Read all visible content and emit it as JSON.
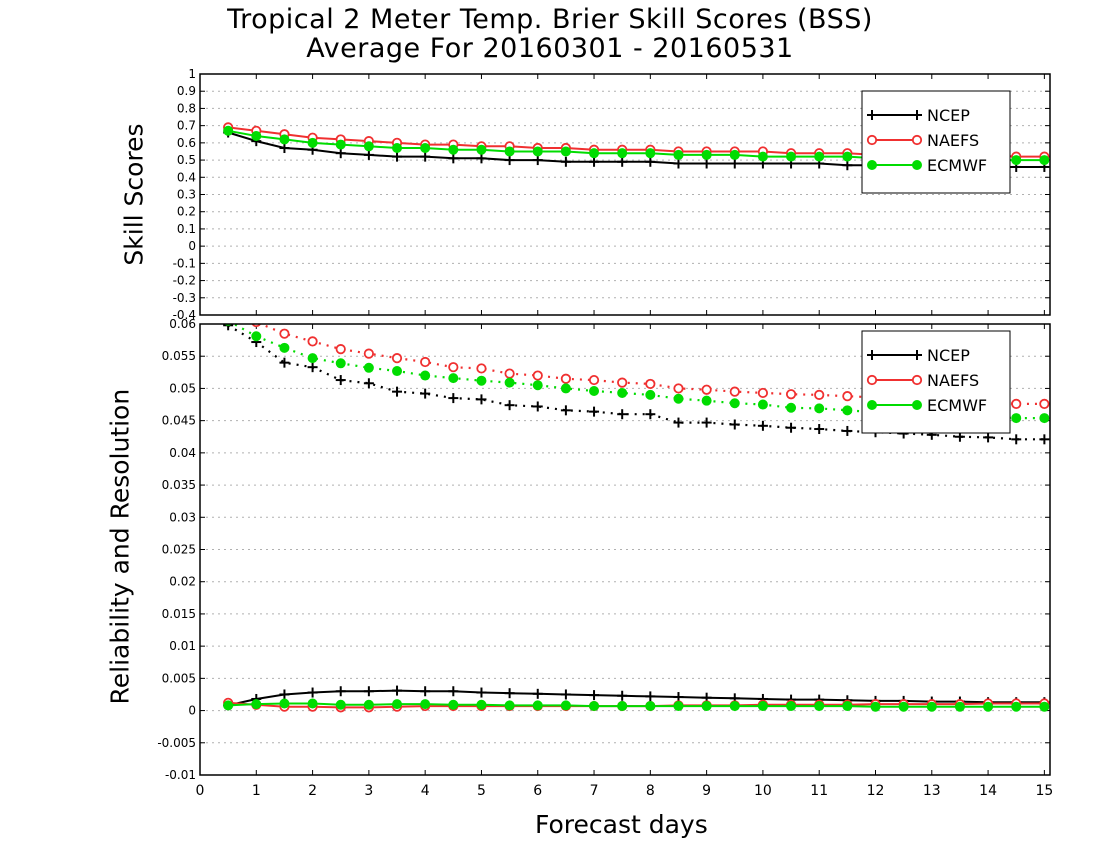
{
  "figure": {
    "title_line1": "Tropical 2 Meter Temp. Brier Skill Scores (BSS)",
    "title_line2": "Average For 20160301 - 20160531",
    "xlabel": "Forecast days"
  },
  "colors": {
    "NCEP": "#000000",
    "NAEFS": "#f03030",
    "ECMWF": "#00dc00"
  },
  "chart_data": [
    {
      "id": "skill",
      "type": "line",
      "ylabel": "Skill Scores",
      "xlim": [
        0,
        15.1
      ],
      "ylim": [
        -0.4,
        1
      ],
      "xticks": [
        "0",
        "1",
        "2",
        "3",
        "4",
        "5",
        "6",
        "7",
        "8",
        "9",
        "10",
        "11",
        "12",
        "13",
        "14",
        "15"
      ],
      "yticks": [
        "-0.4",
        "-0.3",
        "-0.2",
        "-0.1",
        "0",
        "0.1",
        "0.2",
        "0.3",
        "0.4",
        "0.5",
        "0.6",
        "0.7",
        "0.8",
        "0.9",
        "1"
      ],
      "grid": true,
      "legend_position": "top-right",
      "x": [
        0.5,
        1,
        1.5,
        2,
        2.5,
        3,
        3.5,
        4,
        4.5,
        5,
        5.5,
        6,
        6.5,
        7,
        7.5,
        8,
        8.5,
        9,
        9.5,
        10,
        10.5,
        11,
        11.5,
        12,
        12.5,
        13,
        13.5,
        14,
        14.5,
        15
      ],
      "series": [
        {
          "name": "NCEP",
          "marker": "plus",
          "line": "solid",
          "values": [
            0.66,
            0.61,
            0.57,
            0.56,
            0.54,
            0.53,
            0.52,
            0.52,
            0.51,
            0.51,
            0.5,
            0.5,
            0.49,
            0.49,
            0.49,
            0.49,
            0.48,
            0.48,
            0.48,
            0.48,
            0.48,
            0.48,
            0.47,
            0.47,
            0.47,
            0.47,
            0.47,
            0.46,
            0.46,
            0.46
          ]
        },
        {
          "name": "NAEFS",
          "marker": "open-circle",
          "line": "solid",
          "values": [
            0.69,
            0.67,
            0.65,
            0.63,
            0.62,
            0.61,
            0.6,
            0.59,
            0.59,
            0.58,
            0.58,
            0.57,
            0.57,
            0.56,
            0.56,
            0.56,
            0.55,
            0.55,
            0.55,
            0.55,
            0.54,
            0.54,
            0.54,
            0.53,
            0.53,
            0.53,
            0.53,
            0.53,
            0.52,
            0.52
          ]
        },
        {
          "name": "ECMWF",
          "marker": "filled-circle",
          "line": "solid",
          "values": [
            0.67,
            0.64,
            0.62,
            0.6,
            0.59,
            0.58,
            0.57,
            0.57,
            0.56,
            0.56,
            0.55,
            0.55,
            0.55,
            0.54,
            0.54,
            0.54,
            0.53,
            0.53,
            0.53,
            0.52,
            0.52,
            0.52,
            0.52,
            0.51,
            0.51,
            0.51,
            0.5,
            0.5,
            0.5,
            0.5
          ]
        }
      ]
    },
    {
      "id": "reliability",
      "type": "line",
      "ylabel": "Reliability and Resolution",
      "xlabel": "Forecast days",
      "xlim": [
        0,
        15.1
      ],
      "ylim": [
        -0.01,
        0.06
      ],
      "xticks": [
        "0",
        "1",
        "2",
        "3",
        "4",
        "5",
        "6",
        "7",
        "8",
        "9",
        "10",
        "11",
        "12",
        "13",
        "14",
        "15"
      ],
      "yticks": [
        "-0.01",
        "-0.005",
        "0",
        "0.005",
        "0.01",
        "0.015",
        "0.02",
        "0.025",
        "0.03",
        "0.035",
        "0.04",
        "0.045",
        "0.05",
        "0.055",
        "0.06"
      ],
      "grid": true,
      "legend_position": "top-right",
      "x": [
        0.5,
        1,
        1.5,
        2,
        2.5,
        3,
        3.5,
        4,
        4.5,
        5,
        5.5,
        6,
        6.5,
        7,
        7.5,
        8,
        8.5,
        9,
        9.5,
        10,
        10.5,
        11,
        11.5,
        12,
        12.5,
        13,
        13.5,
        14,
        14.5,
        15
      ],
      "series": [
        {
          "name": "NCEP",
          "group": "resolution",
          "marker": "plus",
          "line": "dotted",
          "values": [
            0.0598,
            0.0572,
            0.054,
            0.0533,
            0.0513,
            0.0508,
            0.0495,
            0.0492,
            0.0485,
            0.0483,
            0.0474,
            0.0472,
            0.0466,
            0.0464,
            0.046,
            0.046,
            0.0447,
            0.0447,
            0.0444,
            0.0442,
            0.0439,
            0.0437,
            0.0434,
            0.0432,
            0.043,
            0.0428,
            0.0425,
            0.0424,
            0.0421,
            0.0421
          ]
        },
        {
          "name": "NAEFS",
          "group": "resolution",
          "marker": "open-circle",
          "line": "dotted",
          "values": [
            0.0618,
            0.0603,
            0.0585,
            0.0573,
            0.0561,
            0.0554,
            0.0547,
            0.0541,
            0.0533,
            0.0531,
            0.0523,
            0.052,
            0.0515,
            0.0513,
            0.0509,
            0.0507,
            0.05,
            0.0498,
            0.0495,
            0.0493,
            0.0491,
            0.049,
            0.0488,
            0.0486,
            0.0485,
            0.0484,
            0.048,
            0.0478,
            0.0476,
            0.0476
          ]
        },
        {
          "name": "ECMWF",
          "group": "resolution",
          "marker": "filled-circle",
          "line": "dotted",
          "values": [
            0.0605,
            0.0581,
            0.0563,
            0.0547,
            0.0539,
            0.0532,
            0.0527,
            0.052,
            0.0516,
            0.0512,
            0.0509,
            0.0505,
            0.05,
            0.0496,
            0.0493,
            0.049,
            0.0484,
            0.0481,
            0.0477,
            0.0475,
            0.047,
            0.0469,
            0.0466,
            0.0463,
            0.0462,
            0.046,
            0.0458,
            0.0456,
            0.0454,
            0.0454
          ]
        },
        {
          "name": "NCEP",
          "group": "reliability",
          "marker": "plus",
          "line": "solid",
          "values": [
            0.0008,
            0.0018,
            0.0025,
            0.0028,
            0.003,
            0.003,
            0.0031,
            0.003,
            0.003,
            0.0028,
            0.0027,
            0.0026,
            0.0025,
            0.0024,
            0.0023,
            0.0022,
            0.0021,
            0.002,
            0.0019,
            0.0018,
            0.0017,
            0.0017,
            0.0016,
            0.0015,
            0.0015,
            0.0014,
            0.0014,
            0.0013,
            0.0013,
            0.0013
          ]
        },
        {
          "name": "NAEFS",
          "group": "reliability",
          "marker": "open-circle",
          "line": "solid",
          "values": [
            0.0012,
            0.0009,
            0.0006,
            0.0006,
            0.0005,
            0.0005,
            0.0006,
            0.0007,
            0.0007,
            0.0007,
            0.0007,
            0.0007,
            0.0007,
            0.0007,
            0.0007,
            0.0007,
            0.0008,
            0.0008,
            0.0008,
            0.0009,
            0.0009,
            0.0009,
            0.0009,
            0.001,
            0.001,
            0.001,
            0.001,
            0.0011,
            0.0011,
            0.0011
          ]
        },
        {
          "name": "ECMWF",
          "group": "reliability",
          "marker": "filled-circle",
          "line": "solid",
          "values": [
            0.0008,
            0.001,
            0.0011,
            0.0011,
            0.0009,
            0.0009,
            0.001,
            0.001,
            0.0009,
            0.0009,
            0.0008,
            0.0008,
            0.0008,
            0.0007,
            0.0007,
            0.0007,
            0.0007,
            0.0007,
            0.0007,
            0.0007,
            0.0007,
            0.0007,
            0.0007,
            0.0006,
            0.0006,
            0.0006,
            0.0006,
            0.0006,
            0.0006,
            0.0006
          ]
        }
      ]
    }
  ]
}
